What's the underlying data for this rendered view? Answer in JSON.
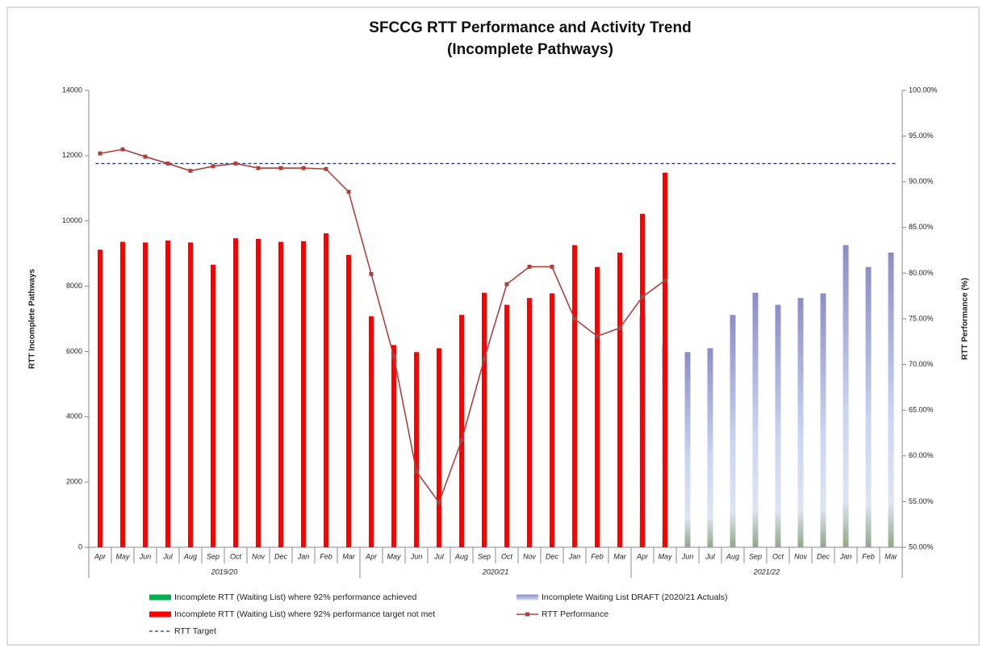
{
  "chart_data": {
    "type": "bar",
    "title": "SFCCG RTT Performance and Activity Trend",
    "subtitle": "(Incomplete Pathways)",
    "y_label": "RTT Incomplete Pathways",
    "y2_label": "RTT Performance (%)",
    "categories": [
      "Apr",
      "May",
      "Jun",
      "Jul",
      "Aug",
      "Sep",
      "Oct",
      "Nov",
      "Dec",
      "Jan",
      "Feb",
      "Mar",
      "Apr",
      "May",
      "Jun",
      "Jul",
      "Aug",
      "Sep",
      "Oct",
      "Nov",
      "Dec",
      "Jan",
      "Feb",
      "Mar",
      "Apr",
      "May",
      "Jun",
      "Jul",
      "Aug",
      "Sep",
      "Oct",
      "Nov",
      "Dec",
      "Jan",
      "Feb",
      "Mar"
    ],
    "x_groups": [
      "2019/20",
      "2020/21",
      "2021/22"
    ],
    "ylim": [
      0,
      14000
    ],
    "yticks": [
      0,
      2000,
      4000,
      6000,
      8000,
      10000,
      12000,
      14000
    ],
    "y2lim": [
      50,
      100
    ],
    "y2ticks": [
      {
        "value": 50,
        "label": "50.00%"
      },
      {
        "value": 55,
        "label": "55.00%"
      },
      {
        "value": 60,
        "label": "60.00%"
      },
      {
        "value": 65,
        "label": "65.00%"
      },
      {
        "value": 70,
        "label": "70.00%"
      },
      {
        "value": 75,
        "label": "75.00%"
      },
      {
        "value": 80,
        "label": "80.00%"
      },
      {
        "value": 85,
        "label": "85.00%"
      },
      {
        "value": 90,
        "label": "90.00%"
      },
      {
        "value": 95,
        "label": "95.00%"
      },
      {
        "value": 100,
        "label": "100.00%"
      }
    ],
    "series": [
      {
        "name": "Incomplete RTT (Waiting List) where 92% performance achieved",
        "type": "bar",
        "color": "#00b050",
        "values": [
          null,
          null,
          null,
          null,
          null,
          null,
          null,
          null,
          null,
          null,
          null,
          null,
          null,
          null,
          null,
          null,
          null,
          null,
          null,
          null,
          null,
          null,
          null,
          null,
          null,
          null,
          null,
          null,
          null,
          null,
          null,
          null,
          null,
          null,
          null,
          null
        ]
      },
      {
        "name": "Incomplete Waiting List DRAFT (2020/21 Actuals)",
        "type": "bar",
        "color": "#8a8ec8",
        "values": [
          null,
          null,
          null,
          null,
          null,
          null,
          null,
          null,
          null,
          null,
          null,
          null,
          null,
          null,
          null,
          null,
          null,
          null,
          null,
          null,
          null,
          null,
          null,
          null,
          7080,
          6200,
          5980,
          6100,
          7120,
          7800,
          7430,
          7640,
          7780,
          9260,
          8590,
          9030
        ]
      },
      {
        "name": "Incomplete RTT (Waiting List) where 92% performance target not met",
        "type": "bar",
        "color": "#ff0000",
        "values": [
          9120,
          9360,
          9340,
          9400,
          9340,
          8660,
          9470,
          9450,
          9360,
          9380,
          9620,
          8960,
          7080,
          6200,
          5980,
          6100,
          7120,
          7800,
          7430,
          7640,
          7780,
          9260,
          8590,
          9030,
          10220,
          11480,
          null,
          null,
          null,
          null,
          null,
          null,
          null,
          null,
          null,
          null
        ]
      },
      {
        "name": "RTT Performance",
        "type": "line",
        "axis": "y2",
        "color": "#b0403c",
        "values": [
          93.1,
          93.55,
          92.75,
          92.0,
          91.2,
          91.7,
          92.0,
          91.5,
          91.5,
          91.5,
          91.4,
          88.9,
          79.9,
          70.9,
          58.3,
          54.9,
          61.7,
          70.6,
          78.8,
          80.7,
          80.7,
          75.0,
          73.1,
          74.0,
          77.4,
          79.2,
          null,
          null,
          null,
          null,
          null,
          null,
          null,
          null,
          null,
          null
        ]
      }
    ],
    "reference_lines": [
      {
        "name": "RTT Target",
        "value": 92,
        "axis": "y2",
        "color": "#1f3d7a"
      }
    ]
  }
}
